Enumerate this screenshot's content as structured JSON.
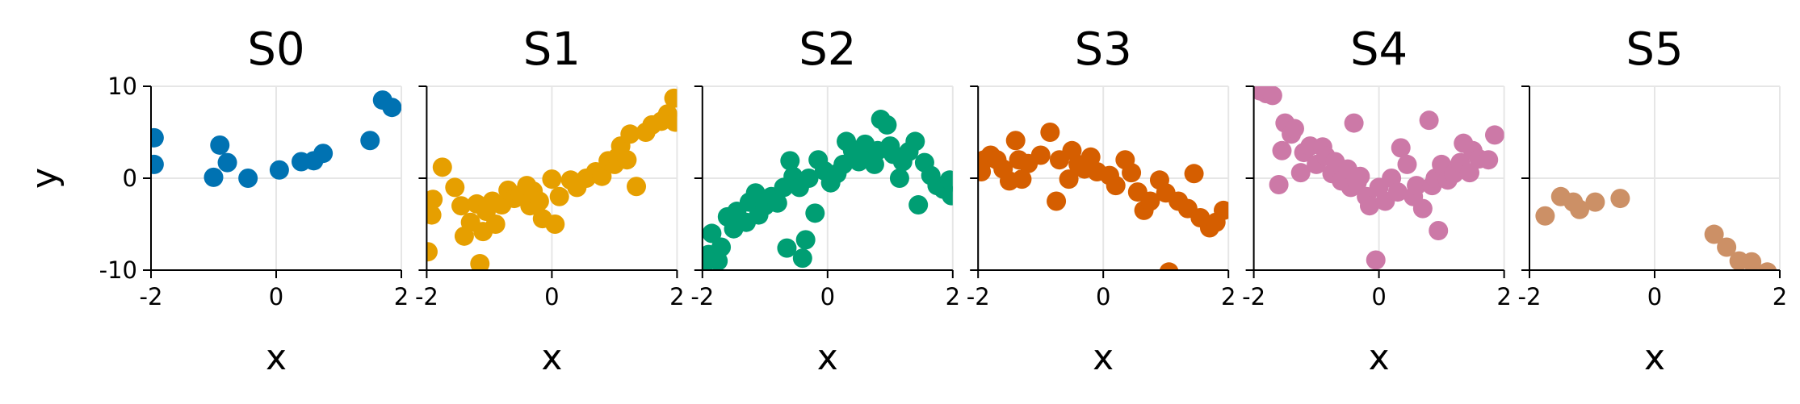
{
  "chart_data": {
    "type": "scatter",
    "xlim": [
      -2,
      2
    ],
    "ylim": [
      -10,
      10
    ],
    "xticks": [
      -2,
      0,
      2
    ],
    "yticks": [
      -10,
      0,
      10
    ],
    "x_tick_labels": [
      "-2",
      "0",
      "2"
    ],
    "y_tick_labels": [
      "-10",
      "0",
      "10"
    ],
    "ylabel": "y",
    "grid": true,
    "panels": [
      {
        "title": "S0",
        "xlabel": "x",
        "color": "#0072B2",
        "points": [
          [
            -1.95,
            4.4
          ],
          [
            -1.95,
            1.5
          ],
          [
            -1.0,
            0.1
          ],
          [
            -0.9,
            3.6
          ],
          [
            -0.78,
            1.7
          ],
          [
            -0.45,
            0.0
          ],
          [
            0.05,
            0.9
          ],
          [
            0.4,
            1.8
          ],
          [
            0.6,
            1.9
          ],
          [
            0.75,
            2.7
          ],
          [
            1.5,
            4.1
          ],
          [
            1.7,
            8.5
          ],
          [
            1.85,
            7.7
          ]
        ]
      },
      {
        "title": "S1",
        "xlabel": "x",
        "color": "#E69F00",
        "points": [
          [
            -1.98,
            -8.0
          ],
          [
            -1.92,
            -4.0
          ],
          [
            -1.9,
            -2.3
          ],
          [
            -1.75,
            1.2
          ],
          [
            -1.55,
            -1.0
          ],
          [
            -1.45,
            -3.0
          ],
          [
            -1.4,
            -6.3
          ],
          [
            -1.3,
            -4.8
          ],
          [
            -1.2,
            -2.8
          ],
          [
            -1.15,
            -9.3
          ],
          [
            -1.1,
            -5.8
          ],
          [
            -1.05,
            -3.6
          ],
          [
            -0.95,
            -2.5
          ],
          [
            -0.9,
            -5.0
          ],
          [
            -0.8,
            -2.9
          ],
          [
            -0.7,
            -1.3
          ],
          [
            -0.6,
            -2.2
          ],
          [
            -0.5,
            -1.8
          ],
          [
            -0.4,
            -0.8
          ],
          [
            -0.35,
            -3.0
          ],
          [
            -0.3,
            -1.4
          ],
          [
            -0.2,
            -2.5
          ],
          [
            -0.15,
            -4.4
          ],
          [
            0.0,
            -0.1
          ],
          [
            0.05,
            -5.0
          ],
          [
            0.12,
            -2.0
          ],
          [
            0.3,
            -0.2
          ],
          [
            0.4,
            -1.0
          ],
          [
            0.55,
            0.0
          ],
          [
            0.7,
            0.7
          ],
          [
            0.8,
            0.2
          ],
          [
            0.9,
            1.9
          ],
          [
            1.0,
            1.5
          ],
          [
            1.05,
            2.3
          ],
          [
            1.1,
            3.5
          ],
          [
            1.2,
            2.0
          ],
          [
            1.25,
            4.8
          ],
          [
            1.35,
            -0.9
          ],
          [
            1.5,
            5.0
          ],
          [
            1.6,
            5.8
          ],
          [
            1.75,
            6.2
          ],
          [
            1.85,
            7.0
          ],
          [
            1.95,
            8.7
          ],
          [
            1.97,
            6.1
          ]
        ]
      },
      {
        "title": "S2",
        "xlabel": "x",
        "color": "#009E73",
        "points": [
          [
            -1.98,
            -9.5
          ],
          [
            -1.9,
            -8.3
          ],
          [
            -1.85,
            -6.0
          ],
          [
            -1.75,
            -9.0
          ],
          [
            -1.7,
            -7.5
          ],
          [
            -1.6,
            -4.2
          ],
          [
            -1.5,
            -5.5
          ],
          [
            -1.45,
            -3.6
          ],
          [
            -1.3,
            -4.8
          ],
          [
            -1.25,
            -2.6
          ],
          [
            -1.15,
            -1.6
          ],
          [
            -1.1,
            -4.0
          ],
          [
            -1.0,
            -3.0
          ],
          [
            -0.9,
            -2.0
          ],
          [
            -0.8,
            -2.7
          ],
          [
            -0.7,
            -1.0
          ],
          [
            -0.65,
            -7.6
          ],
          [
            -0.6,
            1.9
          ],
          [
            -0.55,
            0.2
          ],
          [
            -0.45,
            -1.0
          ],
          [
            -0.4,
            -8.7
          ],
          [
            -0.35,
            -6.7
          ],
          [
            -0.3,
            0.0
          ],
          [
            -0.2,
            -3.8
          ],
          [
            -0.15,
            2.0
          ],
          [
            -0.05,
            0.8
          ],
          [
            0.05,
            -0.5
          ],
          [
            0.15,
            0.5
          ],
          [
            0.25,
            1.5
          ],
          [
            0.3,
            4.0
          ],
          [
            0.4,
            3.0
          ],
          [
            0.5,
            1.8
          ],
          [
            0.55,
            2.5
          ],
          [
            0.6,
            3.7
          ],
          [
            0.7,
            2.0
          ],
          [
            0.75,
            1.5
          ],
          [
            0.8,
            3.0
          ],
          [
            0.85,
            6.4
          ],
          [
            0.95,
            5.8
          ],
          [
            1.0,
            3.5
          ],
          [
            1.05,
            2.6
          ],
          [
            1.15,
            0.0
          ],
          [
            1.2,
            1.8
          ],
          [
            1.3,
            2.9
          ],
          [
            1.4,
            4.0
          ],
          [
            1.45,
            -2.9
          ],
          [
            1.55,
            1.7
          ],
          [
            1.65,
            0.3
          ],
          [
            1.75,
            -0.8
          ],
          [
            1.85,
            -1.2
          ],
          [
            1.95,
            -0.2
          ],
          [
            1.98,
            -1.9
          ]
        ]
      },
      {
        "title": "S3",
        "xlabel": "x",
        "color": "#D55E00",
        "points": [
          [
            -1.98,
            1.4
          ],
          [
            -1.95,
            0.7
          ],
          [
            -1.9,
            2.0
          ],
          [
            -1.8,
            2.5
          ],
          [
            -1.7,
            2.0
          ],
          [
            -1.6,
            1.0
          ],
          [
            -1.5,
            -0.3
          ],
          [
            -1.4,
            4.1
          ],
          [
            -1.35,
            2.0
          ],
          [
            -1.3,
            -0.1
          ],
          [
            -1.2,
            1.6
          ],
          [
            -1.0,
            2.5
          ],
          [
            -0.85,
            5.0
          ],
          [
            -0.75,
            -2.5
          ],
          [
            -0.7,
            2.0
          ],
          [
            -0.55,
            -0.1
          ],
          [
            -0.5,
            3.0
          ],
          [
            -0.4,
            1.5
          ],
          [
            -0.3,
            1.0
          ],
          [
            -0.2,
            2.3
          ],
          [
            -0.1,
            0.7
          ],
          [
            0.1,
            0.3
          ],
          [
            0.2,
            -0.8
          ],
          [
            0.35,
            2.0
          ],
          [
            0.45,
            0.6
          ],
          [
            0.55,
            -1.5
          ],
          [
            0.65,
            -3.5
          ],
          [
            0.75,
            -2.5
          ],
          [
            0.9,
            -0.2
          ],
          [
            1.0,
            -1.6
          ],
          [
            1.05,
            -10.2
          ],
          [
            1.2,
            -2.5
          ],
          [
            1.35,
            -3.3
          ],
          [
            1.45,
            0.5
          ],
          [
            1.55,
            -4.3
          ],
          [
            1.7,
            -5.4
          ],
          [
            1.8,
            -4.8
          ],
          [
            1.92,
            -3.5
          ]
        ]
      },
      {
        "title": "S4",
        "xlabel": "x",
        "color": "#CC79A7",
        "points": [
          [
            -1.9,
            9.5
          ],
          [
            -1.8,
            9.2
          ],
          [
            -1.7,
            9.0
          ],
          [
            -1.6,
            -0.7
          ],
          [
            -1.55,
            3.0
          ],
          [
            -1.5,
            6.0
          ],
          [
            -1.4,
            4.8
          ],
          [
            -1.35,
            5.4
          ],
          [
            -1.25,
            0.6
          ],
          [
            -1.2,
            2.8
          ],
          [
            -1.1,
            3.5
          ],
          [
            -1.0,
            1.5
          ],
          [
            -0.9,
            3.4
          ],
          [
            -0.85,
            2.4
          ],
          [
            -0.75,
            0.5
          ],
          [
            -0.7,
            1.8
          ],
          [
            -0.6,
            -0.3
          ],
          [
            -0.5,
            1.0
          ],
          [
            -0.45,
            -1.0
          ],
          [
            -0.4,
            6.0
          ],
          [
            -0.35,
            -0.5
          ],
          [
            -0.3,
            0.2
          ],
          [
            -0.2,
            -2.0
          ],
          [
            -0.15,
            -3.0
          ],
          [
            -0.05,
            -8.9
          ],
          [
            0.0,
            -1.0
          ],
          [
            0.1,
            -2.5
          ],
          [
            0.2,
            0.0
          ],
          [
            0.3,
            -1.5
          ],
          [
            0.35,
            3.3
          ],
          [
            0.45,
            1.5
          ],
          [
            0.55,
            -2.0
          ],
          [
            0.6,
            -0.8
          ],
          [
            0.7,
            -3.3
          ],
          [
            0.8,
            6.3
          ],
          [
            0.85,
            -0.8
          ],
          [
            0.9,
            0.0
          ],
          [
            0.95,
            -5.7
          ],
          [
            1.0,
            1.5
          ],
          [
            1.1,
            -0.2
          ],
          [
            1.2,
            0.5
          ],
          [
            1.3,
            1.7
          ],
          [
            1.35,
            3.8
          ],
          [
            1.45,
            0.6
          ],
          [
            1.5,
            3.0
          ],
          [
            1.6,
            2.1
          ],
          [
            1.75,
            2.0
          ],
          [
            1.85,
            4.7
          ]
        ]
      },
      {
        "title": "S5",
        "xlabel": "x",
        "color": "#CC9066",
        "points": [
          [
            -1.75,
            -4.1
          ],
          [
            -1.5,
            -2.0
          ],
          [
            -1.3,
            -2.6
          ],
          [
            -1.2,
            -3.4
          ],
          [
            -0.95,
            -2.6
          ],
          [
            -0.55,
            -2.2
          ],
          [
            0.95,
            -6.1
          ],
          [
            1.15,
            -7.5
          ],
          [
            1.35,
            -9.0
          ],
          [
            1.55,
            -9.1
          ],
          [
            1.8,
            -10.2
          ]
        ]
      }
    ]
  }
}
